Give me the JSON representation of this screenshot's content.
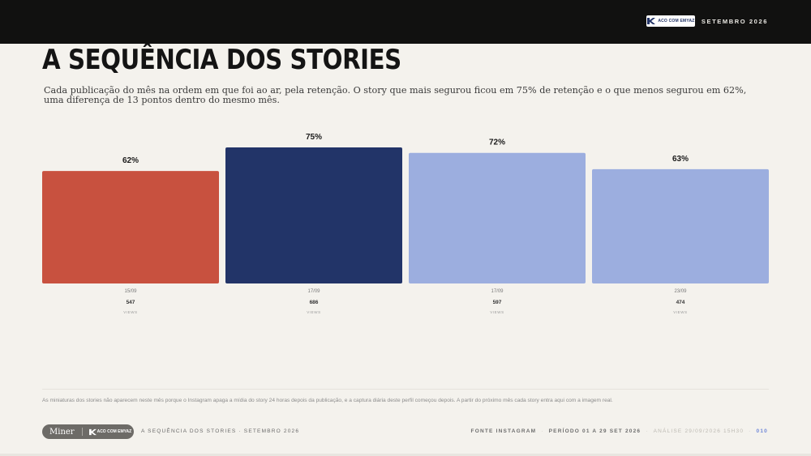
{
  "header": {
    "brand": "ACO COM EMYAZ",
    "month": "SETEMBRO 2026"
  },
  "title": "A SEQUÊNCIA DOS STORIES",
  "subtitle": "Cada publicação do mês na ordem em que foi ao ar, pela retenção. O story que mais segurou ficou em 75% de retenção e o que menos segurou em 62%, uma diferença de 13 pontos dentro do mesmo mês.",
  "chart_data": {
    "type": "bar",
    "categories": [
      "15/09",
      "17/09",
      "17/09",
      "23/09"
    ],
    "values": [
      62,
      75,
      72,
      63
    ],
    "value_labels": [
      "62%",
      "75%",
      "72%",
      "63%"
    ],
    "views": [
      "547",
      "686",
      "597",
      "474"
    ],
    "views_label": "VIEWS",
    "colors": [
      "#c8513f",
      "#223468",
      "#9caedf",
      "#9caedf"
    ],
    "ylim": [
      0,
      75
    ],
    "grid": false
  },
  "note": "As miniaturas dos stories não aparecem neste mês porque o Instagram apaga a mídia do story 24 horas depois da publicação, e a captura diária deste perfil começou depois. A partir do próximo mês cada story entra aqui com a imagem real.",
  "footer": {
    "pill_left": "Miner",
    "pill_logo": "ACO COM EMYAZ",
    "left_text": "A SEQUÊNCIA DOS STORIES · SETEMBRO 2026",
    "source": "FONTE INSTAGRAM",
    "period": "PERÍODO 01 A 29 SET 2026",
    "analysis": "ANÁLISE 29/09/2026 15H30",
    "page": "010"
  }
}
